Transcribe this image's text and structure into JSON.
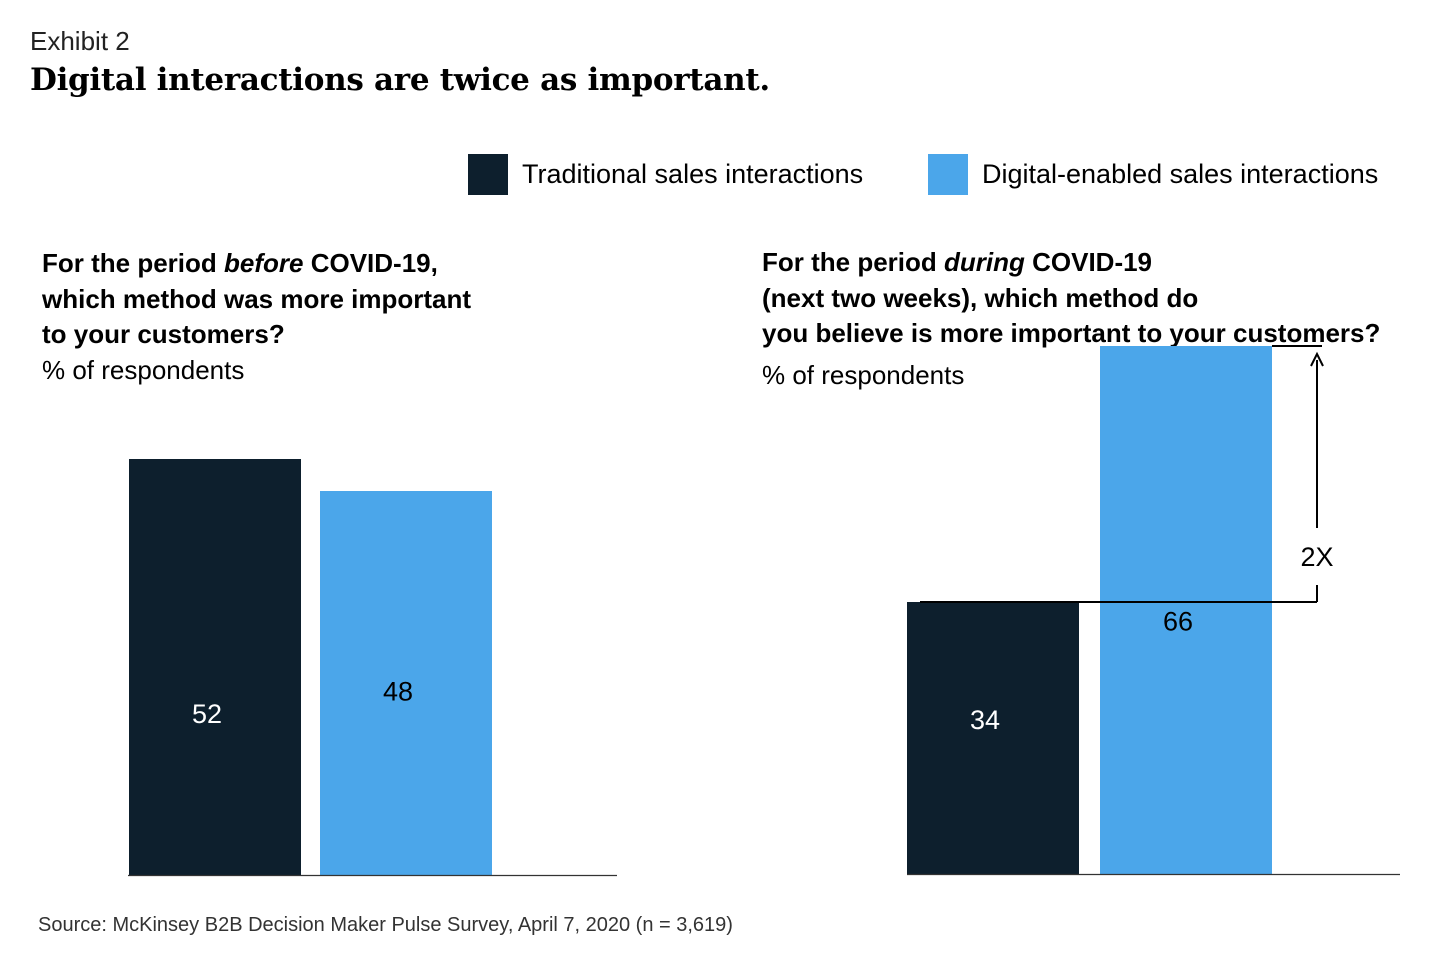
{
  "header": {
    "exhibit_label": "Exhibit 2",
    "title": "Digital interactions are twice as important."
  },
  "legend": [
    {
      "label": "Traditional sales interactions",
      "color": "#0d1f2d"
    },
    {
      "label": "Digital-enabled sales interactions",
      "color": "#4ba6ea"
    }
  ],
  "colors": {
    "traditional": "#0d1f2d",
    "digital": "#4ba6ea",
    "axis": "#333333",
    "label_on_dark": "#ffffff",
    "label_on_light": "#000000"
  },
  "panels": [
    {
      "question": {
        "line1_pre": "For the period ",
        "line1_em": "before",
        "line1_post": " COVID-19,",
        "line2": "which method was more important",
        "line3": "to your customers?"
      },
      "unit": "% of respondents"
    },
    {
      "question": {
        "line1_pre": "For the period ",
        "line1_em": "during",
        "line1_post": " COVID-19",
        "line2": "(next two weeks), which method do",
        "line3": "you believe is more important to your customers?"
      },
      "unit": "% of respondents",
      "annotation": "2X"
    }
  ],
  "chart_data": [
    {
      "type": "bar",
      "title": "For the period before COVID-19, which method was more important to your customers?",
      "ylabel": "% of respondents",
      "categories": [
        "Traditional sales interactions",
        "Digital-enabled sales interactions"
      ],
      "values": [
        52,
        48
      ],
      "colors": [
        "#0d1f2d",
        "#4ba6ea"
      ],
      "grid": false,
      "legend": "top-right"
    },
    {
      "type": "bar",
      "title": "For the period during COVID-19 (next two weeks), which method do you believe is more important to your customers?",
      "ylabel": "% of respondents",
      "categories": [
        "Traditional sales interactions",
        "Digital-enabled sales interactions"
      ],
      "values": [
        34,
        66
      ],
      "colors": [
        "#0d1f2d",
        "#4ba6ea"
      ],
      "grid": false,
      "legend": "top-right",
      "annotations": [
        "2X"
      ]
    }
  ],
  "source": "Source: McKinsey B2B Decision Maker Pulse Survey, April 7, 2020 (n = 3,619)"
}
